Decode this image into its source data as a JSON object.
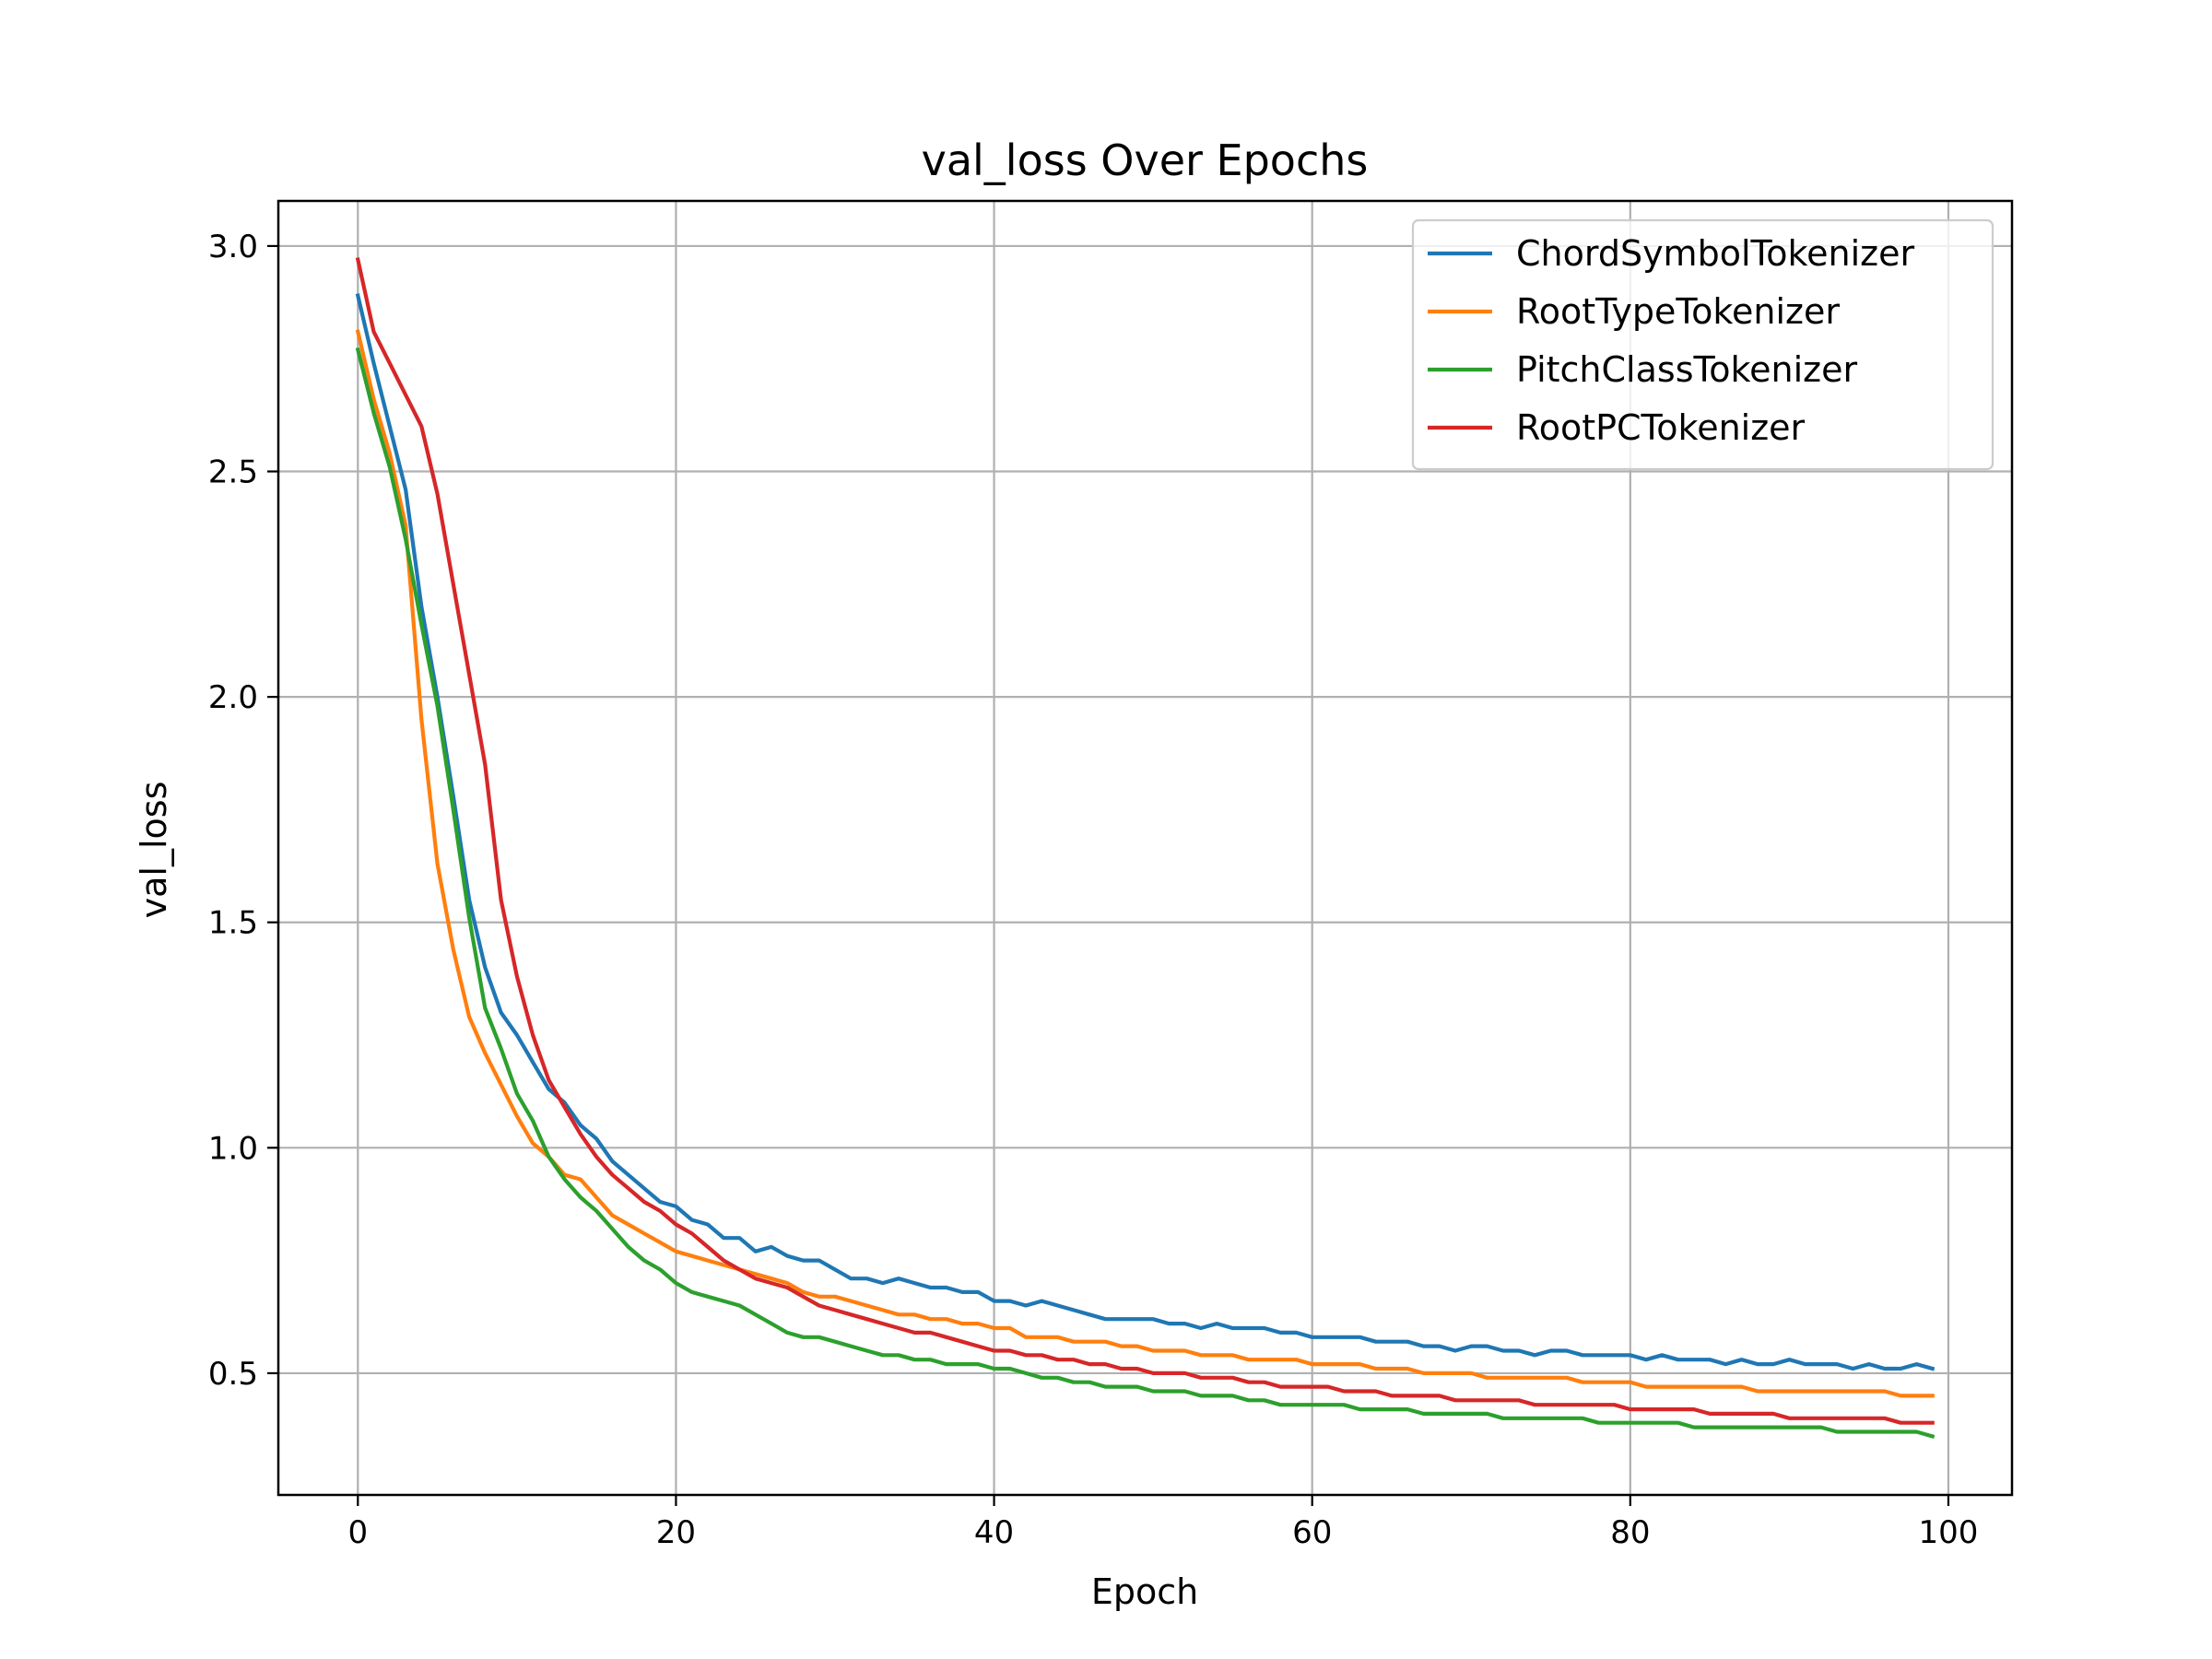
{
  "chart_data": {
    "type": "line",
    "title": "val_loss Over Epochs",
    "xlabel": "Epoch",
    "ylabel": "val_loss",
    "xlim": [
      -5,
      104
    ],
    "ylim": [
      0.23,
      3.1
    ],
    "xticks": [
      0,
      20,
      40,
      60,
      80,
      100
    ],
    "yticks": [
      0.5,
      1.0,
      1.5,
      2.0,
      2.5,
      3.0
    ],
    "xtick_labels": [
      "0",
      "20",
      "40",
      "60",
      "80",
      "100"
    ],
    "ytick_labels": [
      "0.5",
      "1.0",
      "1.5",
      "2.0",
      "2.5",
      "3.0"
    ],
    "grid": true,
    "legend_position": "top-right",
    "x": [
      0,
      1,
      2,
      3,
      4,
      5,
      6,
      7,
      8,
      9,
      10,
      11,
      12,
      13,
      14,
      15,
      16,
      17,
      18,
      19,
      20,
      21,
      22,
      23,
      24,
      25,
      26,
      27,
      28,
      29,
      30,
      31,
      32,
      33,
      34,
      35,
      36,
      37,
      38,
      39,
      40,
      41,
      42,
      43,
      44,
      45,
      46,
      47,
      48,
      49,
      50,
      51,
      52,
      53,
      54,
      55,
      56,
      57,
      58,
      59,
      60,
      61,
      62,
      63,
      64,
      65,
      66,
      67,
      68,
      69,
      70,
      71,
      72,
      73,
      74,
      75,
      76,
      77,
      78,
      79,
      80,
      81,
      82,
      83,
      84,
      85,
      86,
      87,
      88,
      89,
      90,
      91,
      92,
      93,
      94,
      95,
      96,
      97,
      98,
      99
    ],
    "series": [
      {
        "name": "ChordSymbolTokenizer",
        "color": "#1f77b4",
        "values": [
          2.89,
          2.74,
          2.6,
          2.46,
          2.2,
          2.0,
          1.78,
          1.55,
          1.4,
          1.3,
          1.25,
          1.19,
          1.13,
          1.1,
          1.05,
          1.02,
          0.97,
          0.94,
          0.91,
          0.88,
          0.87,
          0.84,
          0.83,
          0.8,
          0.8,
          0.77,
          0.78,
          0.76,
          0.75,
          0.75,
          0.73,
          0.71,
          0.71,
          0.7,
          0.71,
          0.7,
          0.69,
          0.69,
          0.68,
          0.68,
          0.66,
          0.66,
          0.65,
          0.66,
          0.65,
          0.64,
          0.63,
          0.62,
          0.62,
          0.62,
          0.62,
          0.61,
          0.61,
          0.6,
          0.61,
          0.6,
          0.6,
          0.6,
          0.59,
          0.59,
          0.58,
          0.58,
          0.58,
          0.58,
          0.57,
          0.57,
          0.57,
          0.56,
          0.56,
          0.55,
          0.56,
          0.56,
          0.55,
          0.55,
          0.54,
          0.55,
          0.55,
          0.54,
          0.54,
          0.54,
          0.54,
          0.53,
          0.54,
          0.53,
          0.53,
          0.53,
          0.52,
          0.53,
          0.52,
          0.52,
          0.53,
          0.52,
          0.52,
          0.52,
          0.51,
          0.52,
          0.51,
          0.51,
          0.52,
          0.51
        ]
      },
      {
        "name": "RootTypeTokenizer",
        "color": "#ff7f0e",
        "values": [
          2.81,
          2.66,
          2.54,
          2.38,
          1.95,
          1.63,
          1.44,
          1.29,
          1.21,
          1.14,
          1.07,
          1.01,
          0.98,
          0.94,
          0.93,
          0.89,
          0.85,
          0.83,
          0.81,
          0.79,
          0.77,
          0.76,
          0.75,
          0.74,
          0.73,
          0.72,
          0.71,
          0.7,
          0.68,
          0.67,
          0.67,
          0.66,
          0.65,
          0.64,
          0.63,
          0.63,
          0.62,
          0.62,
          0.61,
          0.61,
          0.6,
          0.6,
          0.58,
          0.58,
          0.58,
          0.57,
          0.57,
          0.57,
          0.56,
          0.56,
          0.55,
          0.55,
          0.55,
          0.54,
          0.54,
          0.54,
          0.53,
          0.53,
          0.53,
          0.53,
          0.52,
          0.52,
          0.52,
          0.52,
          0.51,
          0.51,
          0.51,
          0.5,
          0.5,
          0.5,
          0.5,
          0.49,
          0.49,
          0.49,
          0.49,
          0.49,
          0.49,
          0.48,
          0.48,
          0.48,
          0.48,
          0.47,
          0.47,
          0.47,
          0.47,
          0.47,
          0.47,
          0.47,
          0.46,
          0.46,
          0.46,
          0.46,
          0.46,
          0.46,
          0.46,
          0.46,
          0.46,
          0.45,
          0.45,
          0.45
        ]
      },
      {
        "name": "PitchClassTokenizer",
        "color": "#2ca02c",
        "values": [
          2.77,
          2.63,
          2.51,
          2.35,
          2.16,
          1.98,
          1.75,
          1.51,
          1.31,
          1.22,
          1.12,
          1.06,
          0.98,
          0.93,
          0.89,
          0.86,
          0.82,
          0.78,
          0.75,
          0.73,
          0.7,
          0.68,
          0.67,
          0.66,
          0.65,
          0.63,
          0.61,
          0.59,
          0.58,
          0.58,
          0.57,
          0.56,
          0.55,
          0.54,
          0.54,
          0.53,
          0.53,
          0.52,
          0.52,
          0.52,
          0.51,
          0.51,
          0.5,
          0.49,
          0.49,
          0.48,
          0.48,
          0.47,
          0.47,
          0.47,
          0.46,
          0.46,
          0.46,
          0.45,
          0.45,
          0.45,
          0.44,
          0.44,
          0.43,
          0.43,
          0.43,
          0.43,
          0.43,
          0.42,
          0.42,
          0.42,
          0.42,
          0.41,
          0.41,
          0.41,
          0.41,
          0.41,
          0.4,
          0.4,
          0.4,
          0.4,
          0.4,
          0.4,
          0.39,
          0.39,
          0.39,
          0.39,
          0.39,
          0.39,
          0.38,
          0.38,
          0.38,
          0.38,
          0.38,
          0.38,
          0.38,
          0.38,
          0.38,
          0.37,
          0.37,
          0.37,
          0.37,
          0.37,
          0.37,
          0.36
        ]
      },
      {
        "name": "RootPCTokenizer",
        "color": "#d62728",
        "values": [
          2.97,
          2.81,
          2.74,
          2.67,
          2.6,
          2.45,
          2.25,
          2.05,
          1.85,
          1.55,
          1.38,
          1.25,
          1.15,
          1.09,
          1.03,
          0.98,
          0.94,
          0.91,
          0.88,
          0.86,
          0.83,
          0.81,
          0.78,
          0.75,
          0.73,
          0.71,
          0.7,
          0.69,
          0.67,
          0.65,
          0.64,
          0.63,
          0.62,
          0.61,
          0.6,
          0.59,
          0.59,
          0.58,
          0.57,
          0.56,
          0.55,
          0.55,
          0.54,
          0.54,
          0.53,
          0.53,
          0.52,
          0.52,
          0.51,
          0.51,
          0.5,
          0.5,
          0.5,
          0.49,
          0.49,
          0.49,
          0.48,
          0.48,
          0.47,
          0.47,
          0.47,
          0.47,
          0.46,
          0.46,
          0.46,
          0.45,
          0.45,
          0.45,
          0.45,
          0.44,
          0.44,
          0.44,
          0.44,
          0.44,
          0.43,
          0.43,
          0.43,
          0.43,
          0.43,
          0.43,
          0.42,
          0.42,
          0.42,
          0.42,
          0.42,
          0.41,
          0.41,
          0.41,
          0.41,
          0.41,
          0.4,
          0.4,
          0.4,
          0.4,
          0.4,
          0.4,
          0.4,
          0.39,
          0.39,
          0.39
        ]
      }
    ]
  }
}
